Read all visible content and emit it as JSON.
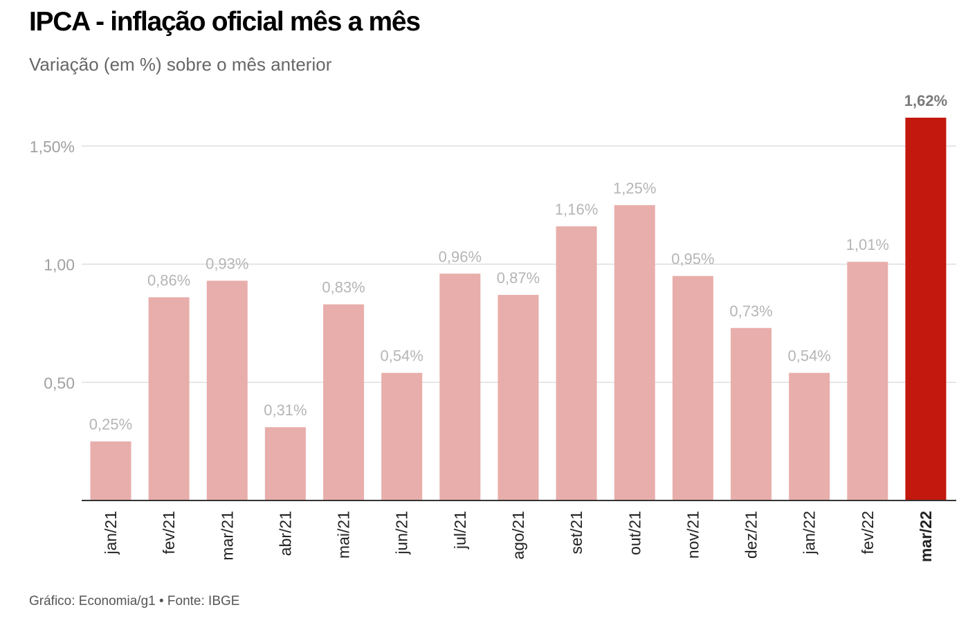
{
  "title": "IPCA - inflação oficial mês a mês",
  "subtitle": "Variação (em %) sobre o mês anterior",
  "footer": "Gráfico: Economia/g1 • Fonte: IBGE",
  "colors": {
    "bar": "#e8aeab",
    "highlight": "#c2180d",
    "label": "#b5b5b5",
    "highlight_label": "#7a7a7a",
    "grid": "#dddddd",
    "axis": "#333333",
    "tick": "#a0a0a0",
    "category": "#222222"
  },
  "chart_data": {
    "type": "bar",
    "categories": [
      "jan/21",
      "fev/21",
      "mar/21",
      "abr/21",
      "mai/21",
      "jun/21",
      "jul/21",
      "ago/21",
      "set/21",
      "out/21",
      "nov/21",
      "dez/21",
      "jan/22",
      "fev/22",
      "mar/22"
    ],
    "values": [
      0.25,
      0.86,
      0.93,
      0.31,
      0.83,
      0.54,
      0.96,
      0.87,
      1.16,
      1.25,
      0.95,
      0.73,
      0.54,
      1.01,
      1.62
    ],
    "labels": [
      "0,25%",
      "0,86%",
      "0,93%",
      "0,31%",
      "0,83%",
      "0,54%",
      "0,96%",
      "0,87%",
      "1,16%",
      "1,25%",
      "0,95%",
      "0,73%",
      "0,54%",
      "1,01%",
      "1,62%"
    ],
    "highlight_index": 14,
    "y_ticks": [
      0.5,
      1.0,
      1.5
    ],
    "y_tick_labels": [
      "0,50",
      "1,00",
      "1,50%"
    ],
    "ylim": [
      0,
      1.62
    ],
    "grid": true,
    "legend": "none"
  }
}
